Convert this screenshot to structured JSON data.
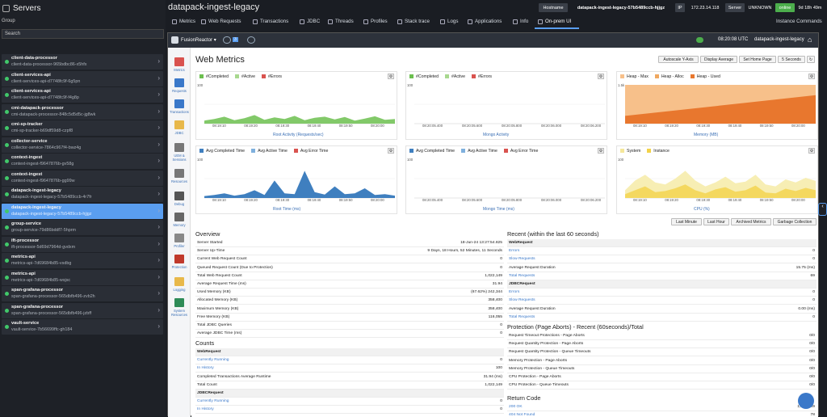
{
  "app": {
    "title": "Servers",
    "group_label": "Group",
    "search_placeholder": "Search"
  },
  "services": [
    {
      "name": "client-data-processor",
      "sub": "client-data-processor-965bdbc86-x5hfx"
    },
    {
      "name": "client-services-api",
      "sub": "client-services-api-d7748fc9f-6g5pn"
    },
    {
      "name": "client-services-api",
      "sub": "client-services-api-d7748fc9f-f4g8p"
    },
    {
      "name": "cmi-datapack-processor",
      "sub": "cmi-datapack-processor-848c5d5d5c-jg8wk"
    },
    {
      "name": "cmi-sp-tracker",
      "sub": "cmi-sp-tracker-b69df59d8-czpf8"
    },
    {
      "name": "collector-service",
      "sub": "collector-service-7864c967f4-bwz4g"
    },
    {
      "name": "context-ingest",
      "sub": "context-ingest-f9647876b-gv58g"
    },
    {
      "name": "context-ingest",
      "sub": "context-ingest-f9647876b-gg99w"
    },
    {
      "name": "datapack-ingest-legacy",
      "sub": "datapack-ingest-legacy-57b5489ccb-4r7fr"
    },
    {
      "name": "datapack-ingest-legacy",
      "sub": "datapack-ingest-legacy-57b5489ccb-hjjgz"
    },
    {
      "name": "group-service",
      "sub": "group-service-79d86bddf7-5hprm"
    },
    {
      "name": "ift-processor",
      "sub": "ift-processor-5d69d7964d-gvdxm"
    },
    {
      "name": "metrics-api",
      "sub": "metrics-api-7d69684b85-vsdbg"
    },
    {
      "name": "metrics-api",
      "sub": "metrics-api-7d69684b85-wsjsc"
    },
    {
      "name": "span-grafana-processor",
      "sub": "span-grafana-processor-565dbfb496-zvb2h"
    },
    {
      "name": "span-grafana-processor",
      "sub": "span-grafana-processor-565dbfb496-jzbff"
    },
    {
      "name": "vault-service",
      "sub": "vault-service-7b56699ffc-gh184"
    }
  ],
  "header": {
    "title": "datapack-ingest-legacy",
    "hostname_label": "Hostname",
    "hostname": "datapack-ingest-legacy-57b5489ccb-hjjgz",
    "ip_label": "IP",
    "ip": "172.23.14.118",
    "server_label": "Server",
    "server": "UNKNOWN",
    "status": "online",
    "uptime": "9d 18h 49m"
  },
  "tabs": [
    "Metrics",
    "Web Requests",
    "Transactions",
    "JDBC",
    "Threads",
    "Profiles",
    "Stack trace",
    "Logs",
    "Applications",
    "Info",
    "On-prem UI"
  ],
  "instance_commands": "Instance Commands",
  "inner": {
    "brand": "FusionReactor",
    "badge": "3",
    "clock": "08:20:08 UTC",
    "server": "datapack-ingest-legacy"
  },
  "leftnav": [
    "Metrics",
    "Requests",
    "Transactions",
    "JDBC",
    "UEM & Sessions",
    "Resources",
    "Debug",
    "Memory",
    "Profiler",
    "Protection",
    "Logging",
    "System Resources"
  ],
  "page": {
    "title": "Web Metrics",
    "buttons": [
      "Autoscale Y-Axis",
      "Display Average",
      "Set Home Page",
      "5 Seconds"
    ]
  },
  "charts": [
    {
      "legend": [
        "#Completed",
        "#Active",
        "#Errors"
      ],
      "colors": [
        "#6cbf4f",
        "#a8d88f",
        "#d9534f"
      ],
      "label": "Root Activity (Requests/sec)",
      "ticks": [
        "08:19:10",
        "08:19:20",
        "08:19:30",
        "08:19:40",
        "08:19:50",
        "08:20:00"
      ],
      "ymax": "100"
    },
    {
      "legend": [
        "#Completed",
        "#Active",
        "#Errors"
      ],
      "colors": [
        "#6cbf4f",
        "#a8d88f",
        "#d9534f"
      ],
      "label": "Mongo Activity",
      "ticks": [
        "08:20:05.400",
        "08:20:05.600",
        "08:20:05.800",
        "08:20:06.000",
        "08:20:06.200"
      ],
      "ymax": "100"
    },
    {
      "legend": [
        "Heap - Max",
        "Heap - Alloc",
        "Heap - Used"
      ],
      "colors": [
        "#f7c08a",
        "#f0a860",
        "#e8772e"
      ],
      "label": "Memory (MB)",
      "ticks": [
        "08:19:10",
        "08:19:20",
        "08:19:30",
        "08:19:40",
        "08:19:50",
        "08:20:00"
      ],
      "ymax": "1.5k"
    },
    {
      "legend": [
        "Avg Completed Time",
        "Avg Active Time",
        "Avg Error Time"
      ],
      "colors": [
        "#3f7fbf",
        "#7fb0dd",
        "#d9534f"
      ],
      "label": "Root Time (ms)",
      "ticks": [
        "08:19:10",
        "08:19:20",
        "08:19:30",
        "08:19:40",
        "08:19:50",
        "08:20:00"
      ],
      "ymax": "100"
    },
    {
      "legend": [
        "Avg Completed Time",
        "Avg Active Time",
        "Avg Error Time"
      ],
      "colors": [
        "#3f7fbf",
        "#7fb0dd",
        "#d9534f"
      ],
      "label": "Mongo Time (ms)",
      "ticks": [
        "08:20:05.400",
        "08:20:05.600",
        "08:20:05.800",
        "08:20:06.000",
        "08:20:06.200"
      ],
      "ymax": "100"
    },
    {
      "legend": [
        "System",
        "Instance"
      ],
      "colors": [
        "#f5e79a",
        "#f2d24a"
      ],
      "label": "CPU (%)",
      "ticks": [
        "08:19:10",
        "08:19:20",
        "08:19:30",
        "08:19:40",
        "08:19:50",
        "08:20:00"
      ],
      "ymax": "100"
    }
  ],
  "chart_data": [
    {
      "type": "area",
      "title": "Root Activity (Requests/sec)",
      "series": [
        {
          "name": "#Completed",
          "values": [
            8,
            12,
            18,
            9,
            14,
            22,
            10,
            16,
            12,
            20,
            9,
            15,
            18,
            11,
            17,
            8,
            13,
            19,
            10,
            12
          ]
        }
      ],
      "ylim": [
        0,
        100
      ]
    },
    {
      "type": "area",
      "title": "Root Time (ms)",
      "series": [
        {
          "name": "Avg Completed Time",
          "values": [
            5,
            8,
            12,
            6,
            10,
            20,
            8,
            45,
            12,
            10,
            70,
            15,
            9,
            30,
            10,
            12,
            25,
            8,
            10,
            6
          ]
        }
      ],
      "ylim": [
        0,
        100
      ]
    },
    {
      "type": "area",
      "title": "Memory (MB)",
      "series": [
        {
          "name": "Heap - Max",
          "values": [
            1500,
            1500
          ]
        },
        {
          "name": "Heap - Alloc",
          "values": [
            1400,
            1400
          ]
        },
        {
          "name": "Heap - Used",
          "values": [
            300,
            1100
          ]
        }
      ]
    },
    {
      "type": "area",
      "title": "CPU (%)",
      "series": [
        {
          "name": "System",
          "values": [
            20,
            45,
            60,
            40,
            35,
            50,
            70,
            45,
            30,
            40,
            55,
            38,
            42,
            60,
            35,
            30,
            48,
            40,
            52,
            44
          ]
        },
        {
          "name": "Instance",
          "values": [
            10,
            20,
            30,
            15,
            18,
            25,
            35,
            20,
            12,
            22,
            28,
            16,
            20,
            32,
            14,
            12,
            24,
            18,
            26,
            20
          ]
        }
      ],
      "ylim": [
        0,
        100
      ]
    }
  ],
  "timebuttons": [
    "Last Minute",
    "Last Hour",
    "Archived Metrics",
    "Garbage Collection"
  ],
  "overview": {
    "title": "Overview",
    "rows": [
      [
        "Server Started",
        "18-Jun-24 13:27:54.825"
      ],
      [
        "Server Up-Time",
        "9 Days, 18 Hours, 52 Minutes, 11 Seconds"
      ],
      [
        "Current Web Request Count",
        "0"
      ],
      [
        "Queued Request Count (Due to Protection)",
        "0"
      ],
      [
        "Total Web Request Count",
        "1,022,149"
      ],
      [
        "Average Request Time (ms)",
        "31.94"
      ],
      [
        "Used Memory (KB)",
        "(67.62%) 242,344"
      ],
      [
        "Allocated Memory (KB)",
        "358,400"
      ],
      [
        "Maximum Memory (KB)",
        "358,400"
      ],
      [
        "Free Memory (KB)",
        "116,055"
      ],
      [
        "Total JDBC Queries",
        "0"
      ],
      [
        "Average JDBC Time (ms)",
        "0"
      ]
    ]
  },
  "counts": {
    "title": "Counts",
    "rows": [
      [
        "WebRequest",
        ""
      ],
      [
        "Currently Running",
        "0"
      ],
      [
        "In History",
        "100"
      ],
      [
        "Completed Transactions Average Runtime",
        "31.94 (ms)"
      ],
      [
        "Total Count",
        "1,022,149"
      ],
      [
        "JDBCRequest",
        ""
      ],
      [
        "Currently Running",
        "0"
      ],
      [
        "In History",
        "0"
      ]
    ]
  },
  "recent": {
    "title": "Recent (within the last 60 seconds)",
    "rows": [
      [
        "WebRequest",
        ""
      ],
      [
        "Errors",
        "0"
      ],
      [
        "Slow Requests",
        "0"
      ],
      [
        "Average Request Duration",
        "15.75 (ms)"
      ],
      [
        "Total Requests",
        "69"
      ],
      [
        "JDBCRequest",
        ""
      ],
      [
        "Errors",
        "0"
      ],
      [
        "Slow Requests",
        "0"
      ],
      [
        "Average Request Duration",
        "0.00 (ms)"
      ],
      [
        "Total Requests",
        "0"
      ]
    ]
  },
  "protection": {
    "title": "Protection (Page Aborts) - Recent (60seconds)/Total",
    "rows": [
      [
        "Request Timeout Protections - Page Aborts",
        "0/0"
      ],
      [
        "Request Quantity Protection - Page Aborts",
        "0/0"
      ],
      [
        "Request Quantity Protection - Queue Timeouts",
        "0/0"
      ],
      [
        "Memory Protection - Page Aborts",
        "0/0"
      ],
      [
        "Memory Protection - Queue Timeouts",
        "0/0"
      ],
      [
        "CPU Protection - Page Aborts",
        "0/0"
      ],
      [
        "CPU Protection - Queue Timeouts",
        "0/0"
      ]
    ]
  },
  "returncode": {
    "title": "Return Code",
    "rows": [
      [
        "200 OK",
        "1,022,149"
      ],
      [
        "404 Not Found",
        "78"
      ]
    ]
  }
}
